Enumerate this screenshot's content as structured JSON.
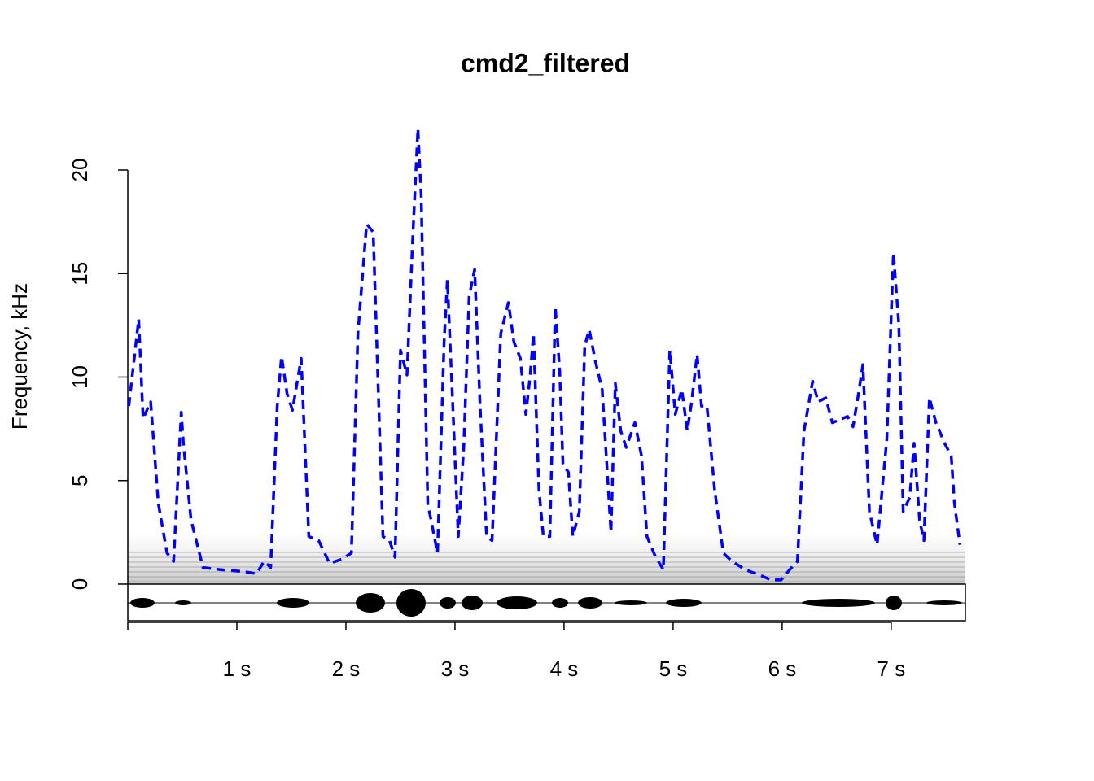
{
  "chart_data": {
    "type": "line",
    "title": "cmd2_filtered",
    "y_label": "Frequency, kHz",
    "xlim": [
      0,
      7.68
    ],
    "ylim": [
      -1.77,
      22.5
    ],
    "xticks": [
      {
        "value": 1,
        "label": "1 s"
      },
      {
        "value": 2,
        "label": "2 s"
      },
      {
        "value": 3,
        "label": "3 s"
      },
      {
        "value": 4,
        "label": "4 s"
      },
      {
        "value": 5,
        "label": "5 s"
      },
      {
        "value": 6,
        "label": "6 s"
      },
      {
        "value": 7,
        "label": "7 s"
      }
    ],
    "yticks": [
      0,
      5,
      10,
      15,
      20
    ],
    "color": "#0000ff",
    "line_style": "dashed",
    "x": [
      0.01,
      0.1,
      0.14,
      0.21,
      0.28,
      0.36,
      0.42,
      0.49,
      0.51,
      0.58,
      0.69,
      0.84,
      1.07,
      1.18,
      1.25,
      1.31,
      1.37,
      1.41,
      1.46,
      1.51,
      1.59,
      1.66,
      1.75,
      1.85,
      1.96,
      2.05,
      2.11,
      2.19,
      2.25,
      2.34,
      2.4,
      2.45,
      2.5,
      2.56,
      2.61,
      2.66,
      2.69,
      2.75,
      2.84,
      2.9,
      2.93,
      2.98,
      3.03,
      3.08,
      3.13,
      3.18,
      3.23,
      3.29,
      3.34,
      3.42,
      3.49,
      3.54,
      3.6,
      3.65,
      3.69,
      3.72,
      3.77,
      3.81,
      3.87,
      3.92,
      3.96,
      3.99,
      4.04,
      4.08,
      4.14,
      4.19,
      4.23,
      4.29,
      4.35,
      4.43,
      4.47,
      4.52,
      4.57,
      4.65,
      4.71,
      4.76,
      4.84,
      4.91,
      4.97,
      5.02,
      5.08,
      5.13,
      5.17,
      5.22,
      5.26,
      5.31,
      5.38,
      5.46,
      5.54,
      5.66,
      5.81,
      5.9,
      5.99,
      6.07,
      6.14,
      6.2,
      6.28,
      6.33,
      6.4,
      6.46,
      6.51,
      6.6,
      6.65,
      6.7,
      6.74,
      6.8,
      6.87,
      6.96,
      7.02,
      7.07,
      7.11,
      7.17,
      7.21,
      7.26,
      7.3,
      7.35,
      7.41,
      7.49,
      7.55,
      7.58,
      7.63
    ],
    "values": [
      8.6,
      12.8,
      8.0,
      8.8,
      3.9,
      1.5,
      1.1,
      8.3,
      6.8,
      3.1,
      0.8,
      0.7,
      0.6,
      0.5,
      1.1,
      0.8,
      8.6,
      11.0,
      9.2,
      8.4,
      10.9,
      2.3,
      2.1,
      1.0,
      1.2,
      1.5,
      12.1,
      17.4,
      17.0,
      2.3,
      2.1,
      1.3,
      11.3,
      10.1,
      16.4,
      22.0,
      18.8,
      3.9,
      1.5,
      11.7,
      14.7,
      8.6,
      2.3,
      6.6,
      13.9,
      15.2,
      8.6,
      2.3,
      2.1,
      12.1,
      13.6,
      11.7,
      10.9,
      8.2,
      10.1,
      12.1,
      4.6,
      2.3,
      2.3,
      13.4,
      10.3,
      5.8,
      5.4,
      2.3,
      3.5,
      11.5,
      12.3,
      10.7,
      9.4,
      2.5,
      9.7,
      7.4,
      6.6,
      7.8,
      6.2,
      2.3,
      1.3,
      0.7,
      11.3,
      8.2,
      9.4,
      7.4,
      8.8,
      11.1,
      8.6,
      8.6,
      4.6,
      1.5,
      1.1,
      0.7,
      0.4,
      0.2,
      0.2,
      0.7,
      1.1,
      7.4,
      9.8,
      8.8,
      9.0,
      7.8,
      7.9,
      8.1,
      7.6,
      9.2,
      10.6,
      3.5,
      1.9,
      7.0,
      16.0,
      12.5,
      3.5,
      4.2,
      6.8,
      3.1,
      2.1,
      9.0,
      7.8,
      6.8,
      6.2,
      3.9,
      1.9
    ]
  }
}
